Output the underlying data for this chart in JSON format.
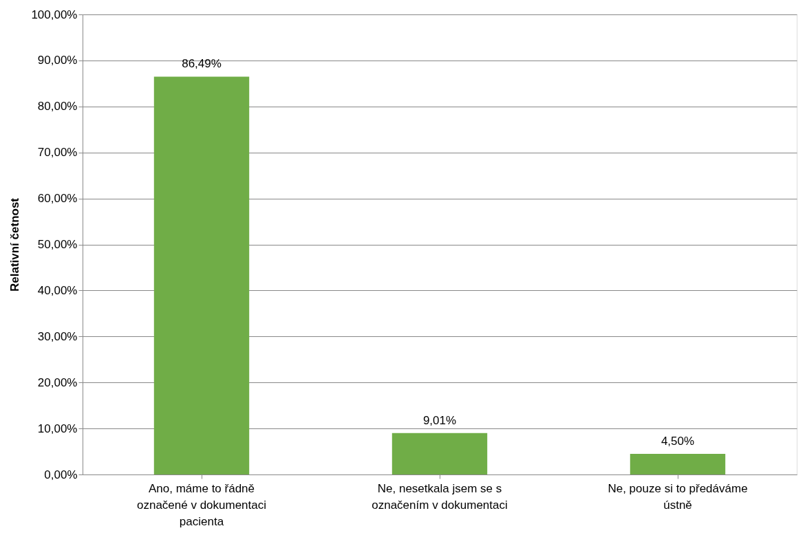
{
  "chart_data": {
    "type": "bar",
    "ylabel": "Relativní četnost",
    "categories": [
      "Ano, máme to řádně označené v dokumentaci pacienta",
      "Ne, nesetkala jsem se s označením v dokumentaci",
      "Ne, pouze si to předáváme ústně"
    ],
    "values": [
      86.49,
      9.01,
      4.5
    ],
    "color": "#70ad47",
    "value_labels": [
      "86,49%",
      "9,01%",
      "4,50%"
    ],
    "ylim": [
      0,
      100
    ],
    "yticks": [
      {
        "value": 0,
        "label": "0,00%"
      },
      {
        "value": 10,
        "label": "10,00%"
      },
      {
        "value": 20,
        "label": "20,00%"
      },
      {
        "value": 30,
        "label": "30,00%"
      },
      {
        "value": 40,
        "label": "40,00%"
      },
      {
        "value": 50,
        "label": "50,00%"
      },
      {
        "value": 60,
        "label": "60,00%"
      },
      {
        "value": 70,
        "label": "70,00%"
      },
      {
        "value": 80,
        "label": "80,00%"
      },
      {
        "value": 90,
        "label": "90,00%"
      },
      {
        "value": 100,
        "label": "100,00%"
      }
    ],
    "grid": "y"
  }
}
